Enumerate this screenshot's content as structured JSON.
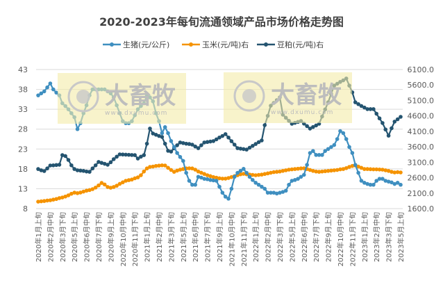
{
  "chart_data": {
    "type": "line",
    "title": "2020-2023年每旬流通领域产品市场价格走势图",
    "x_tick_labels": [
      "2020年1月上旬",
      "2020年2月中旬",
      "2020年3月下旬",
      "2020年5月上旬",
      "2020年6月中旬",
      "2020年7月下旬",
      "2020年9月上旬",
      "2020年10月中旬",
      "2020年11月下旬",
      "2021年1月上旬",
      "2021年2月中旬",
      "2021年3月下旬",
      "2021年5月上旬",
      "2021年6月中旬",
      "2021年7月下旬",
      "2021年9月上旬",
      "2021年10月中旬",
      "2021年11月下旬",
      "2022年1月上旬",
      "2022年2月中旬",
      "2022年3月下旬",
      "2022年5月上旬",
      "2022年6月中旬",
      "2022年7月下旬",
      "2022年9月上旬",
      "2022年10月中旬",
      "2022年11月下旬",
      "2023年1月上旬",
      "2023年2月中旬",
      "2023年3月下旬",
      "2023年5月上旬"
    ],
    "x_tick_every": 4,
    "left_axis": {
      "ylim": [
        8,
        43
      ],
      "ticks": [
        "8",
        "13",
        "18",
        "23",
        "28",
        "33",
        "38",
        "43"
      ]
    },
    "right_axis": {
      "ylim": [
        1600,
        6100
      ],
      "ticks": [
        "1600.0",
        "2100.0",
        "2600.0",
        "3100.0",
        "3600.0",
        "4100.0",
        "4600.0",
        "5100.0",
        "5600.0",
        "6100.0"
      ]
    },
    "grid": true,
    "legend_position": "top",
    "series": [
      {
        "name": "生猪(元/公斤)",
        "axis": "left",
        "color": "#3f8fc0",
        "values": [
          36.5,
          37,
          37.5,
          38.5,
          39.5,
          38,
          37.2,
          36.5,
          34.5,
          33.8,
          33,
          32,
          31,
          28,
          29.5,
          32,
          34,
          36.5,
          38,
          38,
          38,
          38,
          38,
          37.5,
          37,
          36,
          34,
          32,
          30,
          29.5,
          29.5,
          30,
          31.5,
          33,
          33.8,
          34.5,
          36.5,
          36,
          35,
          32,
          30,
          27,
          28.5,
          27,
          25,
          23.5,
          22,
          21,
          20,
          17,
          15,
          14,
          14,
          16,
          15.8,
          15.5,
          15.4,
          15.2,
          15.1,
          15,
          13.5,
          12,
          11,
          10.5,
          13,
          16,
          17,
          17.5,
          18,
          17,
          16,
          15.2,
          14.5,
          14,
          13.5,
          13,
          12,
          12,
          12,
          11.8,
          12,
          12.2,
          12.5,
          14,
          15,
          15.2,
          15.5,
          16,
          16.5,
          19,
          22,
          22.5,
          21.5,
          21.5,
          21.5,
          22.5,
          23,
          23.5,
          24,
          25.5,
          27.5,
          27,
          25.5,
          23.5,
          22,
          19,
          17,
          15,
          14.5,
          14.2,
          14,
          14,
          15,
          15.5,
          15.5,
          15,
          14.8,
          14.6,
          14.2,
          14.5,
          14
        ]
      },
      {
        "name": "玉米(元/吨)右",
        "axis": "right",
        "color": "#f59300",
        "values": [
          1825,
          1835,
          1845,
          1860,
          1870,
          1890,
          1910,
          1940,
          1960,
          1990,
          2030,
          2080,
          2117,
          2100,
          2120,
          2150,
          2180,
          2200,
          2230,
          2280,
          2350,
          2430,
          2380,
          2300,
          2275,
          2300,
          2340,
          2400,
          2450,
          2500,
          2520,
          2540,
          2580,
          2610,
          2680,
          2800,
          2900,
          2950,
          2960,
          2980,
          2990,
          3000,
          2995,
          2920,
          2850,
          2790,
          2830,
          2860,
          2880,
          2900,
          2905,
          2900,
          2860,
          2800,
          2760,
          2720,
          2680,
          2650,
          2620,
          2600,
          2580,
          2570,
          2570,
          2590,
          2620,
          2650,
          2680,
          2710,
          2725,
          2710,
          2700,
          2690,
          2680,
          2690,
          2700,
          2720,
          2740,
          2760,
          2780,
          2790,
          2800,
          2820,
          2840,
          2860,
          2870,
          2880,
          2890,
          2900,
          2905,
          2880,
          2850,
          2820,
          2800,
          2790,
          2800,
          2810,
          2820,
          2830,
          2840,
          2850,
          2870,
          2880,
          2910,
          2950,
          2980,
          2995,
          2960,
          2920,
          2880,
          2880,
          2875,
          2870,
          2870,
          2865,
          2860,
          2840,
          2820,
          2790,
          2770,
          2780,
          2770
        ]
      },
      {
        "name": "豆粕(元/吨)右",
        "axis": "right",
        "color": "#245470",
        "values": [
          2880,
          2840,
          2815,
          2900,
          2995,
          3000,
          3010,
          3020,
          3330,
          3300,
          3175,
          3000,
          2880,
          2840,
          2830,
          2820,
          2800,
          2790,
          2900,
          3000,
          3110,
          3080,
          3050,
          3020,
          3100,
          3200,
          3280,
          3355,
          3350,
          3345,
          3340,
          3335,
          3330,
          3220,
          3280,
          3330,
          3700,
          4190,
          4030,
          3990,
          3950,
          3920,
          3700,
          3470,
          3445,
          3550,
          3650,
          3740,
          3720,
          3700,
          3690,
          3670,
          3610,
          3555,
          3650,
          3740,
          3755,
          3770,
          3785,
          3840,
          3900,
          3950,
          4010,
          3900,
          3780,
          3670,
          3555,
          3540,
          3525,
          3510,
          3570,
          3630,
          3690,
          3750,
          3805,
          4300,
          4600,
          4930,
          5020,
          5110,
          5200,
          4640,
          4540,
          4440,
          4345,
          4375,
          4405,
          4435,
          4350,
          4270,
          4190,
          4240,
          4290,
          4345,
          4580,
          4810,
          5040,
          5310,
          5580,
          5640,
          5700,
          5750,
          5810,
          5580,
          5360,
          5040,
          4980,
          4920,
          4870,
          4820,
          4820,
          4820,
          4670,
          4520,
          4370,
          4160,
          3960,
          4200,
          4415,
          4490,
          4570
        ]
      }
    ]
  },
  "watermark": {
    "brand": "大畜牧",
    "url": "www.dxumu.com",
    "color": "#f3eba9"
  }
}
